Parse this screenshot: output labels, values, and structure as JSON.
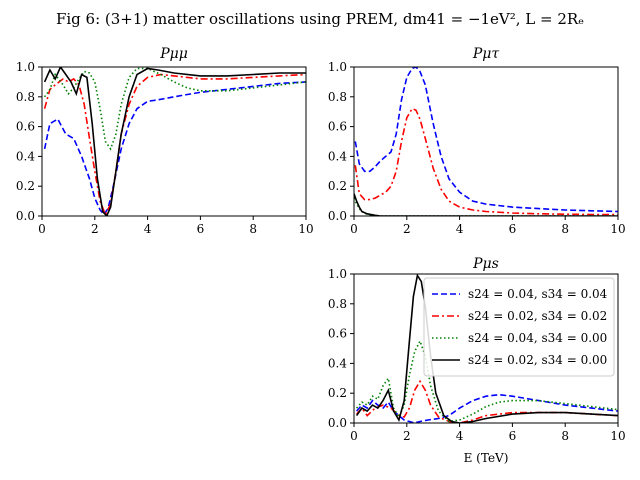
{
  "suptitle": "Fig 6: (3+1) matter oscillations using PREM, dm41 = −1eV², L = 2Rₑ",
  "colors": {
    "s24_004_s34_004": "#0000ff",
    "s24_002_s34_002": "#ff0000",
    "s24_004_s34_000": "#008000",
    "s24_002_s34_000": "#000000"
  },
  "chart_data": [
    {
      "type": "line",
      "id": "pmumu",
      "title": "Pμμ",
      "xlim": [
        0,
        10
      ],
      "ylim": [
        0,
        1
      ],
      "xticks": [
        "0",
        "2",
        "4",
        "6",
        "8",
        "10"
      ],
      "yticks": [
        "0.0",
        "0.2",
        "0.4",
        "0.6",
        "0.8",
        "1.0"
      ],
      "xlabel": "",
      "grid": false,
      "series": [
        {
          "color": "#0000ff",
          "dash": "dashed",
          "x": [
            0.1,
            0.3,
            0.6,
            0.9,
            1.2,
            1.5,
            1.8,
            2.0,
            2.2,
            2.35,
            2.5,
            2.7,
            3.0,
            3.3,
            3.6,
            4.0,
            4.4,
            5.0,
            6.0,
            7.0,
            8.0,
            9.0,
            10.0
          ],
          "y": [
            0.45,
            0.62,
            0.65,
            0.55,
            0.52,
            0.4,
            0.25,
            0.12,
            0.04,
            0.01,
            0.05,
            0.2,
            0.45,
            0.62,
            0.72,
            0.77,
            0.78,
            0.8,
            0.83,
            0.85,
            0.87,
            0.89,
            0.9
          ]
        },
        {
          "color": "#ff0000",
          "dash": "dashdot",
          "x": [
            0.1,
            0.3,
            0.5,
            0.8,
            1.0,
            1.2,
            1.4,
            1.6,
            1.8,
            2.0,
            2.2,
            2.4,
            2.6,
            2.8,
            3.0,
            3.3,
            3.6,
            4.0,
            4.5,
            5.0,
            6.0,
            7.0,
            8.0,
            9.0,
            10.0
          ],
          "y": [
            0.72,
            0.85,
            0.88,
            0.92,
            0.9,
            0.92,
            0.88,
            0.75,
            0.52,
            0.3,
            0.1,
            0.01,
            0.08,
            0.3,
            0.55,
            0.75,
            0.87,
            0.93,
            0.95,
            0.94,
            0.92,
            0.92,
            0.93,
            0.94,
            0.95
          ]
        },
        {
          "color": "#008000",
          "dash": "dotted",
          "x": [
            0.1,
            0.3,
            0.5,
            0.8,
            1.0,
            1.2,
            1.4,
            1.6,
            1.8,
            2.0,
            2.2,
            2.4,
            2.6,
            2.8,
            3.0,
            3.3,
            3.6,
            4.0,
            4.5,
            5.0,
            5.5,
            6.0,
            7.0,
            8.0,
            9.0,
            10.0
          ],
          "y": [
            0.8,
            0.85,
            0.95,
            0.88,
            0.82,
            0.86,
            0.92,
            0.97,
            0.96,
            0.9,
            0.72,
            0.5,
            0.45,
            0.55,
            0.75,
            0.93,
            0.99,
            0.99,
            0.95,
            0.9,
            0.86,
            0.84,
            0.84,
            0.86,
            0.88,
            0.9
          ]
        },
        {
          "color": "#000000",
          "dash": "solid",
          "x": [
            0.1,
            0.3,
            0.5,
            0.7,
            0.9,
            1.1,
            1.3,
            1.5,
            1.7,
            1.9,
            2.1,
            2.3,
            2.45,
            2.6,
            2.8,
            3.0,
            3.3,
            3.6,
            4.0,
            4.4,
            5.0,
            6.0,
            7.0,
            8.0,
            9.0,
            10.0
          ],
          "y": [
            0.9,
            0.98,
            0.92,
            1.0,
            0.95,
            0.9,
            0.82,
            0.95,
            0.93,
            0.62,
            0.25,
            0.03,
            0.0,
            0.06,
            0.3,
            0.55,
            0.8,
            0.95,
            0.99,
            0.98,
            0.96,
            0.94,
            0.94,
            0.95,
            0.96,
            0.96
          ]
        }
      ]
    },
    {
      "type": "line",
      "id": "pmutau",
      "title": "Pμτ",
      "xlim": [
        0,
        10
      ],
      "ylim": [
        0,
        1
      ],
      "xticks": [
        "0",
        "2",
        "4",
        "6",
        "8",
        "10"
      ],
      "yticks": [
        "0.0",
        "0.2",
        "0.4",
        "0.6",
        "0.8",
        "1.0"
      ],
      "xlabel": "",
      "grid": false,
      "series": [
        {
          "color": "#0000ff",
          "dash": "dashed",
          "x": [
            0.05,
            0.2,
            0.4,
            0.6,
            0.8,
            1.0,
            1.2,
            1.4,
            1.6,
            1.8,
            2.0,
            2.2,
            2.35,
            2.5,
            2.7,
            3.0,
            3.3,
            3.6,
            4.0,
            4.5,
            5.0,
            6.0,
            7.0,
            8.0,
            9.0,
            10.0
          ],
          "y": [
            0.5,
            0.35,
            0.3,
            0.3,
            0.33,
            0.37,
            0.4,
            0.43,
            0.55,
            0.78,
            0.93,
            0.99,
            1.0,
            0.97,
            0.88,
            0.62,
            0.4,
            0.25,
            0.16,
            0.1,
            0.08,
            0.06,
            0.05,
            0.04,
            0.035,
            0.03
          ]
        },
        {
          "color": "#ff0000",
          "dash": "dashdot",
          "x": [
            0.05,
            0.2,
            0.4,
            0.6,
            0.8,
            1.0,
            1.2,
            1.4,
            1.6,
            1.8,
            2.0,
            2.2,
            2.35,
            2.5,
            2.7,
            3.0,
            3.3,
            3.6,
            4.0,
            4.5,
            5.0,
            6.0,
            7.0,
            8.0,
            9.0,
            10.0
          ],
          "y": [
            0.34,
            0.15,
            0.11,
            0.11,
            0.12,
            0.14,
            0.16,
            0.2,
            0.3,
            0.5,
            0.66,
            0.72,
            0.71,
            0.65,
            0.52,
            0.32,
            0.18,
            0.1,
            0.06,
            0.04,
            0.03,
            0.02,
            0.015,
            0.012,
            0.01,
            0.01
          ]
        },
        {
          "color": "#008000",
          "dash": "dotted",
          "x": [
            0.0,
            0.1,
            0.2,
            0.3,
            0.5,
            1.0,
            2.0,
            4.0,
            6.0,
            8.0,
            10.0
          ],
          "y": [
            0.12,
            0.08,
            0.05,
            0.03,
            0.01,
            0.0,
            0.0,
            0.0,
            0.0,
            0.0,
            0.0
          ]
        },
        {
          "color": "#000000",
          "dash": "solid",
          "x": [
            0.0,
            0.1,
            0.2,
            0.3,
            0.5,
            0.8,
            1.0,
            2.0,
            4.0,
            6.0,
            8.0,
            10.0
          ],
          "y": [
            0.15,
            0.1,
            0.06,
            0.03,
            0.015,
            0.005,
            0.0,
            0.0,
            0.0,
            0.0,
            0.0,
            0.0
          ]
        }
      ]
    },
    {
      "type": "line",
      "id": "pmus",
      "title": "Pμs",
      "xlim": [
        0,
        10
      ],
      "ylim": [
        0,
        1
      ],
      "xticks": [
        "0",
        "2",
        "4",
        "6",
        "8",
        "10"
      ],
      "yticks": [
        "0.0",
        "0.2",
        "0.4",
        "0.6",
        "0.8",
        "1.0"
      ],
      "xlabel": "E (TeV)",
      "grid": false,
      "legend_position": "top-right",
      "series": [
        {
          "name": "s24 = 0.04, s34 = 0.04",
          "color": "#0000ff",
          "dash": "dashed",
          "x": [
            0.1,
            0.3,
            0.5,
            0.7,
            0.9,
            1.1,
            1.3,
            1.5,
            1.7,
            1.9,
            2.1,
            2.3,
            2.5,
            2.8,
            3.2,
            3.6,
            4.0,
            4.5,
            5.0,
            5.5,
            6.0,
            7.0,
            8.0,
            9.0,
            10.0
          ],
          "y": [
            0.08,
            0.12,
            0.1,
            0.15,
            0.12,
            0.1,
            0.14,
            0.08,
            0.05,
            0.02,
            0.01,
            0.0,
            0.01,
            0.02,
            0.03,
            0.05,
            0.1,
            0.15,
            0.18,
            0.19,
            0.18,
            0.15,
            0.12,
            0.1,
            0.08
          ]
        },
        {
          "name": "s24 = 0.02, s34 = 0.02",
          "color": "#ff0000",
          "dash": "dashdot",
          "x": [
            0.1,
            0.3,
            0.5,
            0.8,
            1.1,
            1.4,
            1.7,
            1.9,
            2.1,
            2.3,
            2.5,
            2.7,
            2.9,
            3.2,
            3.6,
            4.0,
            4.5,
            5.0,
            6.0,
            7.0,
            8.0,
            9.0,
            10.0
          ],
          "y": [
            0.06,
            0.1,
            0.05,
            0.1,
            0.12,
            0.1,
            0.05,
            0.04,
            0.1,
            0.22,
            0.28,
            0.22,
            0.12,
            0.04,
            0.01,
            0.0,
            0.02,
            0.05,
            0.07,
            0.07,
            0.07,
            0.06,
            0.05
          ]
        },
        {
          "name": "s24 = 0.04, s34 = 0.00",
          "color": "#008000",
          "dash": "dotted",
          "x": [
            0.1,
            0.3,
            0.5,
            0.7,
            0.9,
            1.1,
            1.3,
            1.5,
            1.7,
            1.9,
            2.1,
            2.3,
            2.5,
            2.7,
            2.9,
            3.2,
            3.6,
            4.0,
            4.5,
            5.0,
            5.5,
            6.0,
            7.0,
            8.0,
            9.0,
            10.0
          ],
          "y": [
            0.1,
            0.14,
            0.12,
            0.18,
            0.16,
            0.25,
            0.3,
            0.1,
            0.04,
            0.12,
            0.32,
            0.48,
            0.55,
            0.45,
            0.25,
            0.08,
            0.01,
            0.02,
            0.06,
            0.11,
            0.14,
            0.15,
            0.15,
            0.13,
            0.11,
            0.09
          ]
        },
        {
          "name": "s24 = 0.02, s34 = 0.00",
          "color": "#000000",
          "dash": "solid",
          "x": [
            0.1,
            0.3,
            0.5,
            0.7,
            0.9,
            1.1,
            1.3,
            1.5,
            1.7,
            1.9,
            2.1,
            2.25,
            2.4,
            2.55,
            2.7,
            2.9,
            3.1,
            3.4,
            3.7,
            4.0,
            4.5,
            5.0,
            6.0,
            7.0,
            8.0,
            9.0,
            10.0
          ],
          "y": [
            0.05,
            0.1,
            0.08,
            0.12,
            0.1,
            0.15,
            0.22,
            0.08,
            0.02,
            0.15,
            0.55,
            0.85,
            0.99,
            0.95,
            0.78,
            0.45,
            0.2,
            0.05,
            0.01,
            0.0,
            0.01,
            0.03,
            0.06,
            0.07,
            0.07,
            0.06,
            0.05
          ]
        }
      ]
    }
  ]
}
